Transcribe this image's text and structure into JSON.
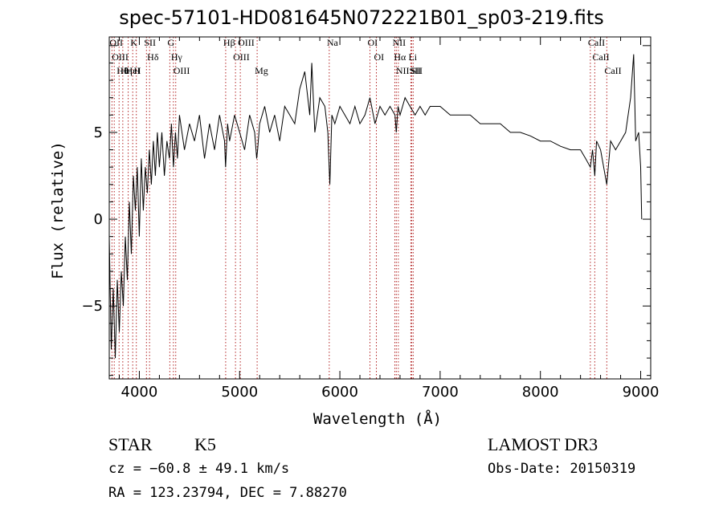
{
  "header": {
    "title": "spec-57101-HD081645N072221B01_sp03-219.fits"
  },
  "chart_data": {
    "type": "line",
    "title": "spec-57101-HD081645N072221B01_sp03-219.fits",
    "xlabel": "Wavelength (Å)",
    "ylabel": "Flux (relative)",
    "xlim": [
      3700,
      9100
    ],
    "ylim": [
      -9.2,
      10.5
    ],
    "xticks": [
      4000,
      5000,
      6000,
      7000,
      8000,
      9000
    ],
    "xtick_labels": [
      "4000",
      "5000",
      "6000",
      "7000",
      "8000",
      "9000"
    ],
    "yticks": [
      -5,
      0,
      5
    ],
    "ytick_labels": [
      "−5",
      "0",
      "5"
    ],
    "grid": false,
    "series": [
      {
        "name": "Flux",
        "x": [
          3700,
          3720,
          3740,
          3760,
          3780,
          3800,
          3820,
          3840,
          3860,
          3880,
          3900,
          3920,
          3940,
          3960,
          3980,
          4000,
          4020,
          4040,
          4060,
          4080,
          4100,
          4120,
          4140,
          4160,
          4180,
          4200,
          4225,
          4250,
          4275,
          4300,
          4320,
          4340,
          4360,
          4380,
          4400,
          4450,
          4500,
          4550,
          4600,
          4650,
          4700,
          4750,
          4800,
          4850,
          4860,
          4880,
          4900,
          4950,
          5000,
          5050,
          5100,
          5150,
          5170,
          5180,
          5200,
          5250,
          5300,
          5350,
          5400,
          5450,
          5500,
          5550,
          5600,
          5650,
          5700,
          5720,
          5750,
          5800,
          5850,
          5880,
          5890,
          5900,
          5920,
          5950,
          6000,
          6050,
          6100,
          6150,
          6200,
          6250,
          6300,
          6350,
          6400,
          6450,
          6500,
          6550,
          6563,
          6580,
          6600,
          6650,
          6700,
          6750,
          6800,
          6850,
          6900,
          6950,
          7000,
          7100,
          7200,
          7300,
          7400,
          7500,
          7600,
          7700,
          7800,
          7900,
          8000,
          8100,
          8200,
          8300,
          8400,
          8450,
          8498,
          8520,
          8542,
          8560,
          8600,
          8662,
          8700,
          8750,
          8800,
          8850,
          8900,
          8930,
          8950,
          8980,
          9000,
          9010
        ],
        "values": [
          -1.0,
          -7.5,
          -4.0,
          -8.0,
          -3.5,
          -6.5,
          -3.0,
          -5.0,
          -1.0,
          -3.5,
          1.0,
          -2.0,
          2.5,
          0.5,
          3.0,
          -1.0,
          3.5,
          0.5,
          3.0,
          1.5,
          4.0,
          2.0,
          4.5,
          2.5,
          5.0,
          3.0,
          5.0,
          2.5,
          4.5,
          3.5,
          5.5,
          3.0,
          5.0,
          3.5,
          6.0,
          4.0,
          5.5,
          4.5,
          6.0,
          3.5,
          5.5,
          4.0,
          6.0,
          4.5,
          3.0,
          5.5,
          4.5,
          6.0,
          5.0,
          4.0,
          6.0,
          5.0,
          3.5,
          4.0,
          5.5,
          6.5,
          5.0,
          6.0,
          4.5,
          6.5,
          6.0,
          5.5,
          7.5,
          8.5,
          6.0,
          9.0,
          5.0,
          7.0,
          6.5,
          5.0,
          3.5,
          2.0,
          6.0,
          5.5,
          6.5,
          6.0,
          5.5,
          6.5,
          5.5,
          6.0,
          7.0,
          5.5,
          6.5,
          6.0,
          6.5,
          6.0,
          5.0,
          6.5,
          6.0,
          7.0,
          6.5,
          6.0,
          6.5,
          6.0,
          6.5,
          6.5,
          6.5,
          6.0,
          6.0,
          6.0,
          5.5,
          5.5,
          5.5,
          5.0,
          5.0,
          4.8,
          4.5,
          4.5,
          4.2,
          4.0,
          4.0,
          3.5,
          3.0,
          4.0,
          2.5,
          4.5,
          4.0,
          2.0,
          4.5,
          4.0,
          4.5,
          5.0,
          7.0,
          9.5,
          4.5,
          5.0,
          3.0,
          0.0
        ]
      }
    ],
    "line_markers": [
      {
        "wavelength": 3727,
        "label": "OII"
      },
      {
        "wavelength": 3750,
        "label": "OIII"
      },
      {
        "wavelength": 3798,
        "label": "Hθ"
      },
      {
        "wavelength": 3835,
        "label": "Hη"
      },
      {
        "wavelength": 3889,
        "label": "HeI"
      },
      {
        "wavelength": 3934,
        "label": "K"
      },
      {
        "wavelength": 3970,
        "label": "H"
      },
      {
        "wavelength": 4071,
        "label": "SII"
      },
      {
        "wavelength": 4102,
        "label": "Hδ"
      },
      {
        "wavelength": 4304,
        "label": "G"
      },
      {
        "wavelength": 4340,
        "label": "Hγ"
      },
      {
        "wavelength": 4363,
        "label": "OIII"
      },
      {
        "wavelength": 4861,
        "label": "Hβ"
      },
      {
        "wavelength": 4959,
        "label": "OIII"
      },
      {
        "wavelength": 5007,
        "label": "OIII"
      },
      {
        "wavelength": 5175,
        "label": "Mg"
      },
      {
        "wavelength": 5894,
        "label": "Na"
      },
      {
        "wavelength": 6300,
        "label": "OI"
      },
      {
        "wavelength": 6364,
        "label": "OI"
      },
      {
        "wavelength": 6548,
        "label": "NII"
      },
      {
        "wavelength": 6563,
        "label": "Hα"
      },
      {
        "wavelength": 6583,
        "label": "NII"
      },
      {
        "wavelength": 6708,
        "label": "Li"
      },
      {
        "wavelength": 6716,
        "label": "SII"
      },
      {
        "wavelength": 6731,
        "label": "SII"
      },
      {
        "wavelength": 8498,
        "label": "CaII"
      },
      {
        "wavelength": 8542,
        "label": "CaII"
      },
      {
        "wavelength": 8662,
        "label": "CaII"
      }
    ],
    "colors": {
      "axes": "#000000",
      "spectrum": "#000000",
      "line_markers": "#b22222"
    }
  },
  "info": {
    "object_class": "STAR",
    "subclass": "K5",
    "survey": "LAMOST DR3",
    "cz": "cz = −60.8 ± 49.1 km/s",
    "obs_date": "Obs-Date: 20150319",
    "radec": "RA = 123.23794, DEC =   7.88270"
  }
}
